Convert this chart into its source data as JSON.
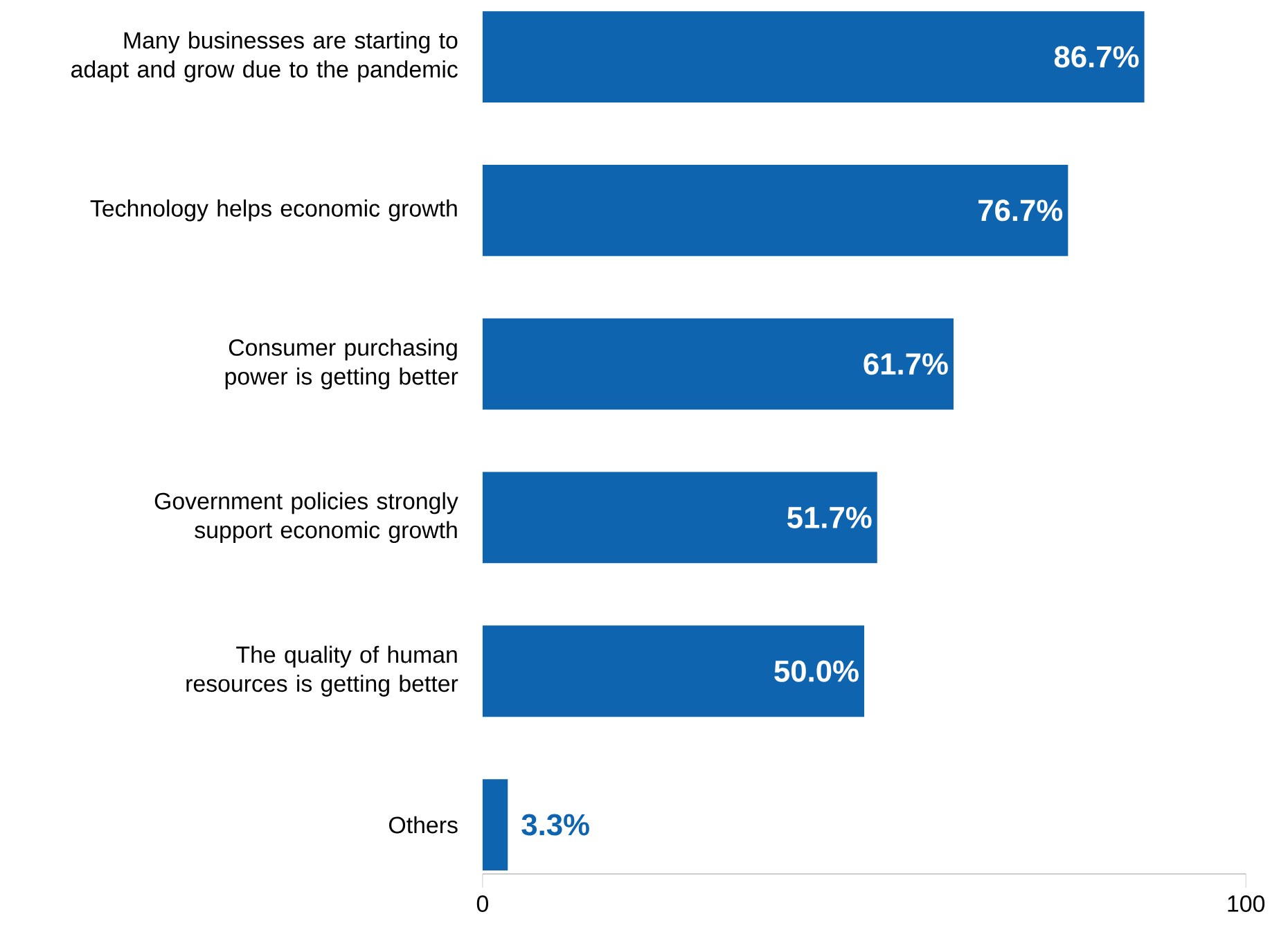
{
  "chart_data": {
    "type": "bar",
    "orientation": "horizontal",
    "categories": [
      "Many businesses are starting to adapt and grow due to the pandemic",
      "Technology helps economic growth",
      "Consumer purchasing power is getting better",
      "Government policies strongly support economic growth",
      "The quality of human resources is getting better",
      "Others"
    ],
    "values": [
      86.7,
      76.7,
      61.7,
      51.7,
      50.0,
      3.3
    ],
    "value_labels": [
      "86.7%",
      "76.7%",
      "61.7%",
      "51.7%",
      "50.0%",
      "3.3%"
    ],
    "color": "#0f64b0",
    "xlim": [
      0,
      100
    ],
    "xticks": [
      0,
      100
    ],
    "grid": false
  }
}
